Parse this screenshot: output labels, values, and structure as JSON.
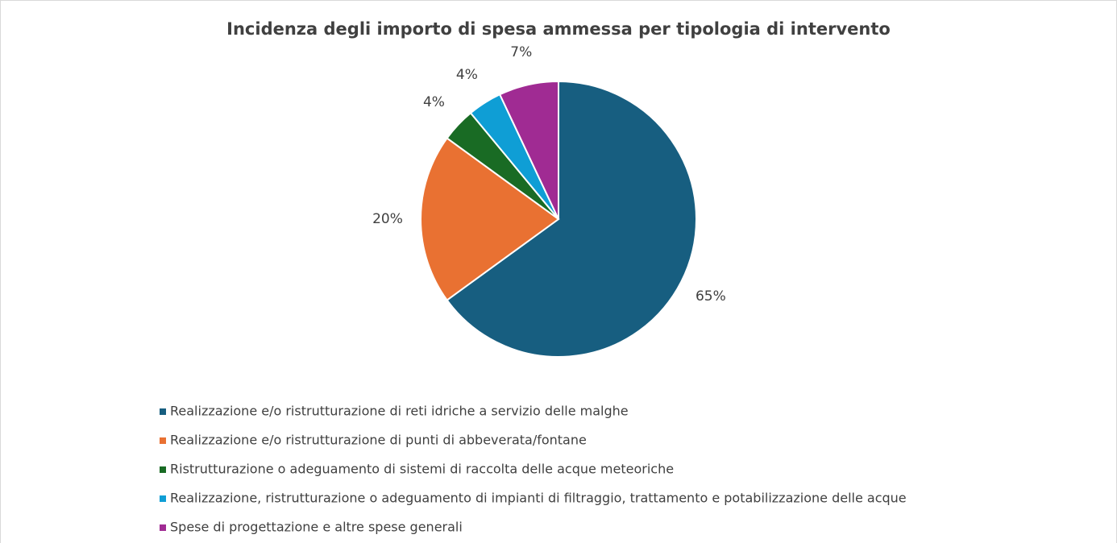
{
  "chart_data": {
    "type": "pie",
    "title": "Incidenza degli importo di spesa ammessa per tipologia di intervento",
    "categories": [
      "Realizzazione e/o ristrutturazione di reti idriche a servizio delle malghe",
      "Realizzazione e/o ristrutturazione di punti di abbeverata/fontane",
      "Ristrutturazione o adeguamento di sistemi di raccolta delle acque meteoriche",
      "Realizzazione, ristrutturazione o adeguamento di impianti di filtraggio, trattamento e potabilizzazione delle acque",
      "Spese di progettazione e altre spese generali"
    ],
    "values": [
      65,
      20,
      4,
      4,
      7
    ],
    "value_labels": [
      "65%",
      "20%",
      "4%",
      "4%",
      "7%"
    ],
    "colors": [
      "#175e80",
      "#e97132",
      "#196b24",
      "#0f9ed5",
      "#a02b93"
    ],
    "legend": "bottom"
  }
}
